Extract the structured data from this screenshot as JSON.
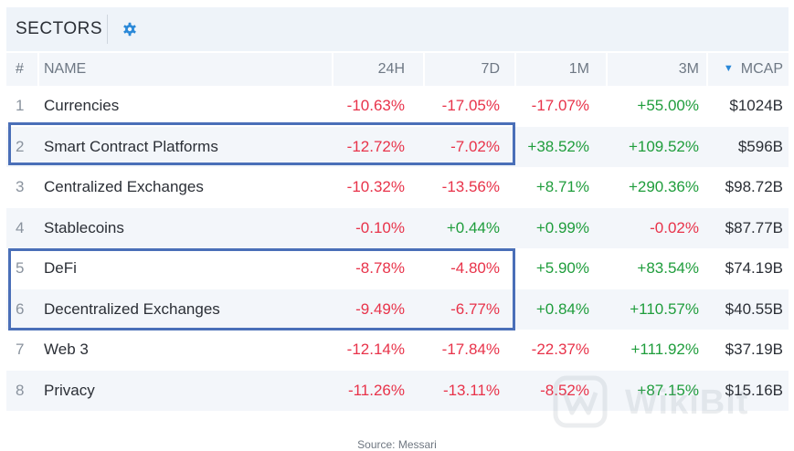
{
  "header": {
    "title": "SECTORS",
    "settings_icon": "gear-icon"
  },
  "columns": {
    "num": "#",
    "name": "NAME",
    "h24": "24H",
    "d7": "7D",
    "m1": "1M",
    "m3": "3M",
    "mcap": "MCAP",
    "sort_icon": "sort-desc-icon"
  },
  "rows": [
    {
      "num": "1",
      "name": "Currencies",
      "h24": "-10.63%",
      "d7": "-17.05%",
      "m1": "-17.07%",
      "m3": "+55.00%",
      "mcap": "$1024B"
    },
    {
      "num": "2",
      "name": "Smart Contract Platforms",
      "h24": "-12.72%",
      "d7": "-7.02%",
      "m1": "+38.52%",
      "m3": "+109.52%",
      "mcap": "$596B"
    },
    {
      "num": "3",
      "name": "Centralized Exchanges",
      "h24": "-10.32%",
      "d7": "-13.56%",
      "m1": "+8.71%",
      "m3": "+290.36%",
      "mcap": "$98.72B"
    },
    {
      "num": "4",
      "name": "Stablecoins",
      "h24": "-0.10%",
      "d7": "+0.44%",
      "m1": "+0.99%",
      "m3": "-0.02%",
      "mcap": "$87.77B"
    },
    {
      "num": "5",
      "name": "DeFi",
      "h24": "-8.78%",
      "d7": "-4.80%",
      "m1": "+5.90%",
      "m3": "+83.54%",
      "mcap": "$74.19B"
    },
    {
      "num": "6",
      "name": "Decentralized Exchanges",
      "h24": "-9.49%",
      "d7": "-6.77%",
      "m1": "+0.84%",
      "m3": "+110.57%",
      "mcap": "$40.55B"
    },
    {
      "num": "7",
      "name": "Web 3",
      "h24": "-12.14%",
      "d7": "-17.84%",
      "m1": "-22.37%",
      "m3": "+111.92%",
      "mcap": "$37.19B"
    },
    {
      "num": "8",
      "name": "Privacy",
      "h24": "-11.26%",
      "d7": "-13.11%",
      "m1": "-8.52%",
      "m3": "+87.15%",
      "mcap": "$15.16B"
    }
  ],
  "watermark": {
    "text": "WikiBit"
  },
  "source": "Source: Messari",
  "colors": {
    "negative": "#e8334a",
    "positive": "#1f9d3c",
    "highlight": "#4a6fb8",
    "accent": "#2a88d8"
  }
}
